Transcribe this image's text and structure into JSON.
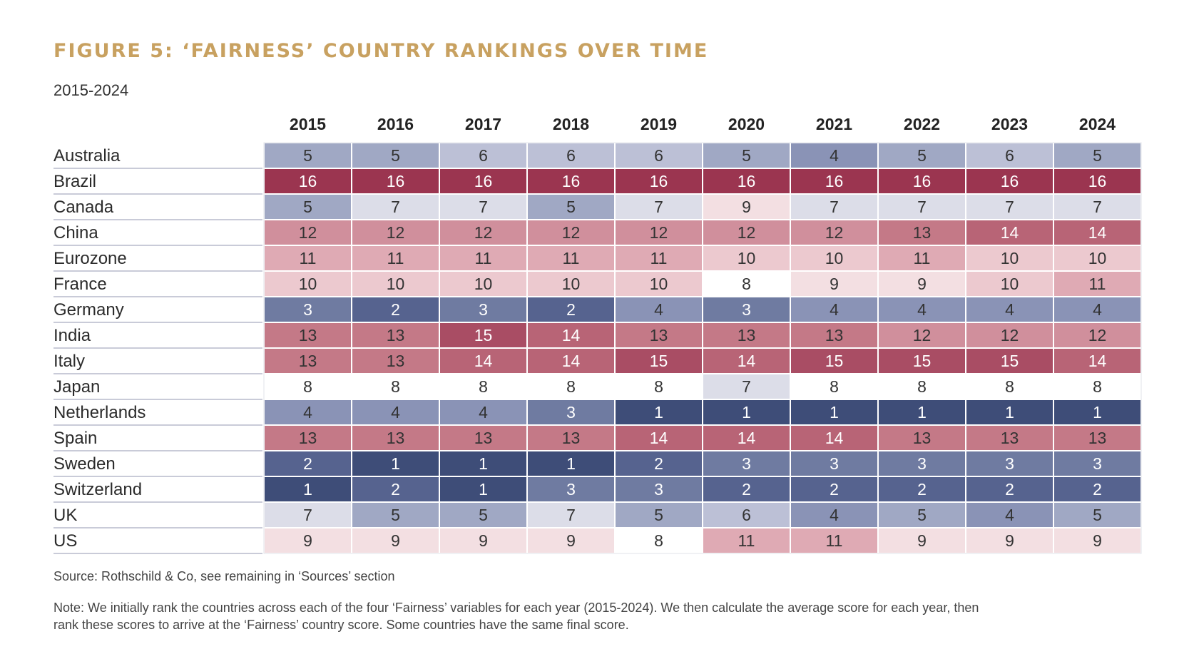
{
  "title": "FIGURE 5: ‘FAIRNESS’ COUNTRY RANKINGS OVER TIME",
  "subtitle": "2015-2024",
  "source": "Source: Rothschild & Co, see remaining in ‘Sources’ section",
  "note": "Note: We initially rank the countries across each of the four ‘Fairness’ variables for each year (2015-2024). We then calculate the average score for each year, then rank these scores to arrive at the ‘Fairness’ country score. Some countries have the same final score.",
  "chart_data": {
    "type": "heatmap",
    "title": "FIGURE 5: ‘FAIRNESS’ COUNTRY RANKINGS OVER TIME",
    "subtitle": "2015-2024",
    "x": [
      "2015",
      "2016",
      "2017",
      "2018",
      "2019",
      "2020",
      "2021",
      "2022",
      "2023",
      "2024"
    ],
    "y": [
      "Australia",
      "Brazil",
      "Canada",
      "China",
      "Eurozone",
      "France",
      "Germany",
      "India",
      "Italy",
      "Japan",
      "Netherlands",
      "Spain",
      "Sweden",
      "Switzerland",
      "UK",
      "US"
    ],
    "values": [
      [
        5,
        5,
        6,
        6,
        6,
        5,
        4,
        5,
        6,
        5
      ],
      [
        16,
        16,
        16,
        16,
        16,
        16,
        16,
        16,
        16,
        16
      ],
      [
        5,
        7,
        7,
        5,
        7,
        9,
        7,
        7,
        7,
        7
      ],
      [
        12,
        12,
        12,
        12,
        12,
        12,
        12,
        13,
        14,
        14
      ],
      [
        11,
        11,
        11,
        11,
        11,
        10,
        10,
        11,
        10,
        10
      ],
      [
        10,
        10,
        10,
        10,
        10,
        8,
        9,
        9,
        10,
        11
      ],
      [
        3,
        2,
        3,
        2,
        4,
        3,
        4,
        4,
        4,
        4
      ],
      [
        13,
        13,
        15,
        14,
        13,
        13,
        13,
        12,
        12,
        12
      ],
      [
        13,
        13,
        14,
        14,
        15,
        14,
        15,
        15,
        15,
        14
      ],
      [
        8,
        8,
        8,
        8,
        8,
        7,
        8,
        8,
        8,
        8
      ],
      [
        4,
        4,
        4,
        3,
        1,
        1,
        1,
        1,
        1,
        1
      ],
      [
        13,
        13,
        13,
        13,
        14,
        14,
        14,
        13,
        13,
        13
      ],
      [
        2,
        1,
        1,
        1,
        2,
        3,
        3,
        3,
        3,
        3
      ],
      [
        1,
        2,
        1,
        3,
        3,
        2,
        2,
        2,
        2,
        2
      ],
      [
        7,
        5,
        5,
        7,
        5,
        6,
        4,
        5,
        4,
        5
      ],
      [
        9,
        9,
        9,
        9,
        8,
        11,
        11,
        9,
        9,
        9
      ]
    ],
    "color_scale": {
      "1": "#3e4d78",
      "2": "#56638f",
      "3": "#6f7ba1",
      "4": "#8a93b6",
      "5": "#a0a8c4",
      "6": "#bcc0d6",
      "7": "#dcdde8",
      "8": "#ffffff",
      "9": "#f3dfe2",
      "10": "#ecc9cf",
      "11": "#dfaab4",
      "12": "#d08f9c",
      "13": "#c47987",
      "14": "#b86476",
      "15": "#a94d64",
      "16": "#9b3550"
    },
    "light_text_color": "#ffffff",
    "dark_text_color": "#333333"
  }
}
